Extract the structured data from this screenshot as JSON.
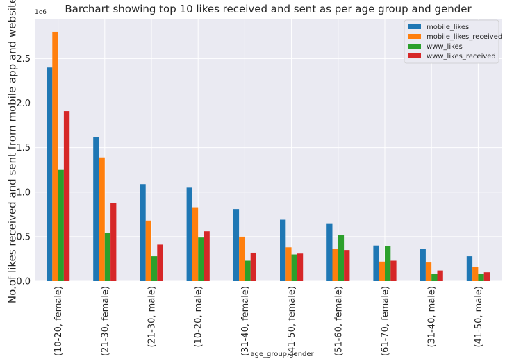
{
  "chart_data": {
    "type": "bar",
    "title": "Barchart showing top 10 likes received and sent as per age group and gender",
    "xlabel": "age_group,gender",
    "ylabel": "No.of likes received and sent from mobile app and website",
    "y_offset_label": "1e6",
    "y_scale": 1000000,
    "ylim": [
      0,
      2.94
    ],
    "yticks": [
      0.0,
      0.5,
      1.0,
      1.5,
      2.0,
      2.5
    ],
    "ytick_labels": [
      "0.0",
      "0.5",
      "1.0",
      "1.5",
      "2.0",
      "2.5"
    ],
    "grid": true,
    "legend_placement": "top-right",
    "categories": [
      "(10-20, female)",
      "(21-30, female)",
      "(21-30, male)",
      "(10-20, male)",
      "(31-40, female)",
      "(41-50, female)",
      "(51-60, female)",
      "(61-70, female)",
      "(31-40, male)",
      "(41-50, male)"
    ],
    "series": [
      {
        "name": "mobile_likes",
        "color": "#1f77b4",
        "values": [
          2.4,
          1.62,
          1.09,
          1.05,
          0.81,
          0.69,
          0.65,
          0.4,
          0.36,
          0.28
        ]
      },
      {
        "name": "mobile_likes_received",
        "color": "#ff7f0e",
        "values": [
          2.8,
          1.39,
          0.68,
          0.83,
          0.5,
          0.38,
          0.36,
          0.22,
          0.21,
          0.16
        ]
      },
      {
        "name": "www_likes",
        "color": "#2ca02c",
        "values": [
          1.25,
          0.54,
          0.28,
          0.49,
          0.23,
          0.3,
          0.52,
          0.39,
          0.08,
          0.08
        ]
      },
      {
        "name": "www_likes_received",
        "color": "#d62728",
        "values": [
          1.91,
          0.88,
          0.41,
          0.56,
          0.32,
          0.31,
          0.35,
          0.23,
          0.12,
          0.1
        ]
      }
    ]
  }
}
